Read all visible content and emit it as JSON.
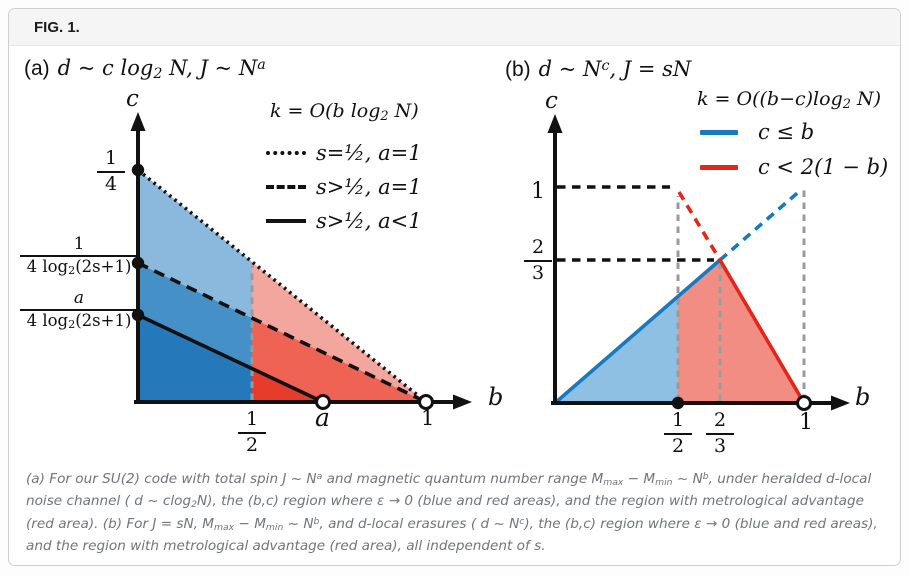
{
  "figure_label": "FIG. 1.",
  "colors": {
    "blue_line": "#1878c0",
    "red_line": "#e3261a",
    "panel_a_blue_fill_light": "#8ab9dd",
    "panel_a_blue_fill_mid": "#4690c8",
    "panel_a_blue_fill_dark": "#2579ba",
    "panel_a_red_fill_light": "#f3a69d",
    "panel_a_red_fill_mid": "#ee6354",
    "panel_a_red_fill_bright": "#e83c2b",
    "panel_b_blue_fill": "#8dc0e2",
    "panel_b_red_fill": "#f18d83",
    "gray_dashed": "#9a9a9a",
    "axis_black": "#111111"
  },
  "panel_a": {
    "title_prefix": "(a)",
    "title_runs": [
      {
        "t": "d ~ c log"
      },
      {
        "sub": "2"
      },
      {
        "t": " N,  J ~ N"
      },
      {
        "sup": "a"
      }
    ],
    "y_axis_label": "c",
    "x_axis_label": "b",
    "legend_title_runs": [
      {
        "t": "k = O(b log"
      },
      {
        "sub": "2"
      },
      {
        "t": " N)"
      }
    ],
    "legend_items": [
      {
        "style": "dotted",
        "label": "s=½,  a=1"
      },
      {
        "style": "dashed",
        "label": "s>½,  a=1"
      },
      {
        "style": "solid",
        "label": "s>½,  a<1"
      }
    ],
    "y_tick_top": {
      "num": "1",
      "den": "4"
    },
    "y_tick_mid": {
      "num": "1",
      "den_runs": [
        {
          "t": "4 log"
        },
        {
          "sub": "2"
        },
        {
          "t": "(2s+1)"
        }
      ]
    },
    "y_tick_low": {
      "num": "a",
      "den_runs": [
        {
          "t": "4 log"
        },
        {
          "sub": "2"
        },
        {
          "t": "(2s+1)"
        }
      ]
    },
    "x_tick_half": {
      "num": "1",
      "den": "2"
    },
    "x_tick_a": "a",
    "x_tick_one": "1"
  },
  "panel_b": {
    "title_prefix": "(b)",
    "title_runs": [
      {
        "t": "d ~ N"
      },
      {
        "sup": "c"
      },
      {
        "t": ",  J = sN"
      }
    ],
    "y_axis_label": "c",
    "x_axis_label": "b",
    "legend_title_runs": [
      {
        "t": "k = O((b−c)log"
      },
      {
        "sub": "2"
      },
      {
        "t": " N)"
      }
    ],
    "legend_items": [
      {
        "color": "#1878c0",
        "label": "c ≤ b"
      },
      {
        "color": "#e3261a",
        "label": "c < 2(1 − b)"
      }
    ],
    "y_tick_one": "1",
    "y_tick_twothirds": {
      "num": "2",
      "den": "3"
    },
    "x_tick_half": {
      "num": "1",
      "den": "2"
    },
    "x_tick_twothirds": {
      "num": "2",
      "den": "3"
    },
    "x_tick_one": "1"
  },
  "caption_runs": [
    {
      "t": "(a) For our SU(2) code with total spin J ~ N"
    },
    {
      "sup": "a"
    },
    {
      "t": " and magnetic quantum number range M"
    },
    {
      "sub": "max"
    },
    {
      "t": " − M"
    },
    {
      "sub": "min"
    },
    {
      "t": " ~ N"
    },
    {
      "sup": "b"
    },
    {
      "t": ", under heralded d-local noise channel ( d ~ clog"
    },
    {
      "sub": "2"
    },
    {
      "t": "N), the (b,c) region where ε → 0 (blue and red areas), and the region with metrological advantage (red area). (b) For J = sN, M"
    },
    {
      "sub": "max"
    },
    {
      "t": " − M"
    },
    {
      "sub": "min"
    },
    {
      "t": " ~ N"
    },
    {
      "sup": "b"
    },
    {
      "t": ", and d-local erasures ( d ~ N"
    },
    {
      "sup": "c"
    },
    {
      "t": "), the (b,c) region where ε → 0 (blue and red areas), and the region with metrological advantage (red area), all independent of s."
    }
  ],
  "chart_data": [
    {
      "panel": "a",
      "type": "line",
      "title": "d ~ c log2 N, J ~ N^a",
      "xlabel": "b",
      "ylabel": "c",
      "xlim": [
        0,
        1
      ],
      "x_ticks": [
        "1/2",
        "a",
        "1"
      ],
      "y_ticks": [
        "a/(4 log2(2s+1))",
        "1/(4 log2(2s+1))",
        "1/4"
      ],
      "legend_title": "k = O(b log2 N)",
      "legend_position": "upper right",
      "series": [
        {
          "name": "s=1/2, a=1",
          "style": "dotted",
          "color": "#111111",
          "points": [
            [
              "0",
              "1/4"
            ],
            [
              "1",
              "0"
            ]
          ],
          "endpoint_marker": "open-circle"
        },
        {
          "name": "s>1/2, a=1",
          "style": "dashed",
          "color": "#111111",
          "points": [
            [
              "0",
              "1/(4 log2(2s+1))"
            ],
            [
              "1",
              "0"
            ]
          ],
          "endpoint_marker": "open-circle"
        },
        {
          "name": "s>1/2, a<1",
          "style": "solid",
          "color": "#111111",
          "points": [
            [
              "0",
              "a/(4 log2(2s+1))"
            ],
            [
              "a",
              "0"
            ]
          ],
          "endpoint_marker": "open-circle"
        }
      ],
      "regions": [
        {
          "color": "blue",
          "meaning": "epsilon -> 0",
          "range": "0 < b < 1/2, below dotted line (three shades layered by line)"
        },
        {
          "color": "red",
          "meaning": "metrological advantage",
          "range": "1/2 < b < 1, below dotted line (three shades layered by line)"
        }
      ],
      "guides": {
        "v_dashed_gray": [
          "1/2"
        ]
      }
    },
    {
      "panel": "b",
      "type": "line",
      "title": "d ~ N^c, J = sN",
      "xlabel": "b",
      "ylabel": "c",
      "xlim": [
        0,
        1
      ],
      "x_ticks": [
        "1/2",
        "2/3",
        "1"
      ],
      "y_ticks": [
        "2/3",
        "1"
      ],
      "legend_title": "k = O((b−c)log2 N)",
      "legend_position": "upper right",
      "series": [
        {
          "name": "c ≤ b",
          "color": "#1878c0",
          "points": [
            [
              0,
              0
            ],
            [
              0.667,
              0.667
            ],
            [
              1,
              1
            ]
          ],
          "dashed_after_x": 0.667
        },
        {
          "name": "c < 2(1 − b)",
          "color": "#e3261a",
          "points": [
            [
              0.5,
              1
            ],
            [
              0.667,
              0.667
            ],
            [
              1,
              0
            ]
          ],
          "dashed_before_x": 0.667,
          "endpoint_marker": "open-circle"
        }
      ],
      "regions": [
        {
          "color": "blue",
          "meaning": "epsilon -> 0",
          "range": "0 < b < 1/2 below c = b"
        },
        {
          "color": "red",
          "meaning": "metrological advantage",
          "range": "1/2 < b < 1 below min(b, 2(1−b))"
        }
      ],
      "guides": {
        "h_dashed_black": [
          1,
          0.667
        ],
        "v_dashed_gray": [
          0.5,
          0.667,
          1
        ],
        "x_axis_markers": [
          {
            "x": 0.5,
            "marker": "filled-dot"
          },
          {
            "x": 1,
            "marker": "open-circle"
          }
        ]
      }
    }
  ]
}
